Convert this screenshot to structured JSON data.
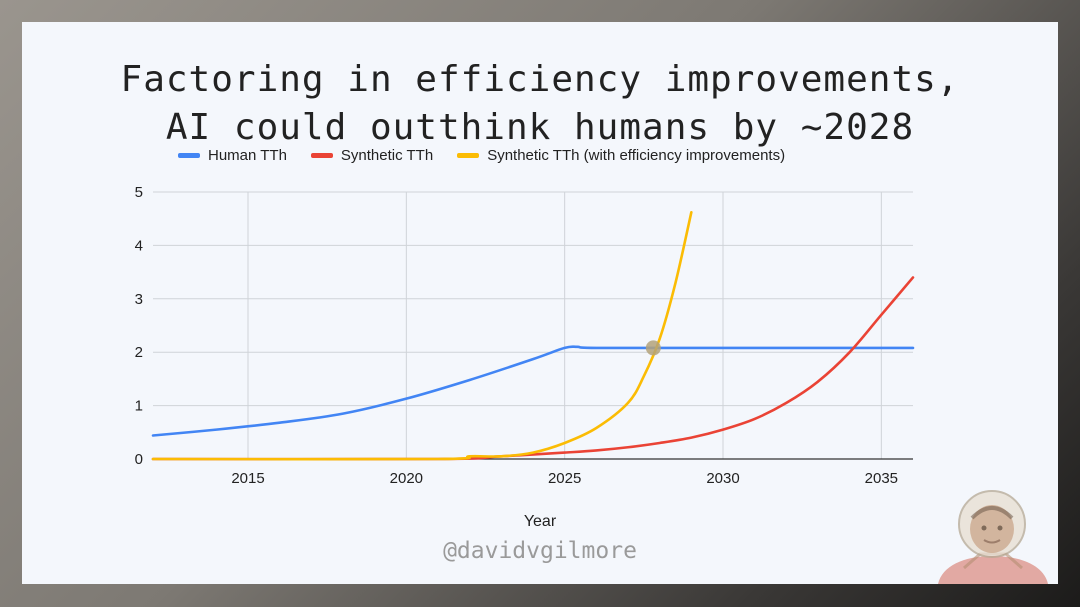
{
  "chart_data": {
    "type": "line",
    "title": "Factoring in efficiency improvements,\nAI could outthink humans by ~2028",
    "xlabel": "Year",
    "ylabel": "",
    "xlim": [
      2012,
      2036
    ],
    "ylim": [
      0,
      5
    ],
    "x_ticks": [
      2015,
      2020,
      2025,
      2030,
      2035
    ],
    "y_ticks": [
      0,
      1,
      2,
      3,
      4,
      5
    ],
    "grid": true,
    "legend_position": "top",
    "series": [
      {
        "name": "Human TTh",
        "color": "#4285f4",
        "points": [
          [
            2012,
            0.44
          ],
          [
            2014,
            0.55
          ],
          [
            2016,
            0.68
          ],
          [
            2018,
            0.85
          ],
          [
            2020,
            1.13
          ],
          [
            2022,
            1.48
          ],
          [
            2024,
            1.87
          ],
          [
            2025,
            2.08
          ],
          [
            2025.4,
            2.1
          ],
          [
            2026,
            2.08
          ],
          [
            2030,
            2.08
          ],
          [
            2036,
            2.08
          ]
        ]
      },
      {
        "name": "Synthetic TTh",
        "color": "#ea4335",
        "points": [
          [
            2012,
            0
          ],
          [
            2021,
            0
          ],
          [
            2023,
            0.05
          ],
          [
            2025,
            0.12
          ],
          [
            2026,
            0.16
          ],
          [
            2027,
            0.22
          ],
          [
            2028,
            0.3
          ],
          [
            2029,
            0.4
          ],
          [
            2030,
            0.55
          ],
          [
            2031,
            0.75
          ],
          [
            2032,
            1.05
          ],
          [
            2033,
            1.45
          ],
          [
            2034,
            2.0
          ],
          [
            2035,
            2.7
          ],
          [
            2036,
            3.4
          ]
        ]
      },
      {
        "name": "Synthetic TTh (with efficiency improvements)",
        "color": "#fbbc04",
        "points": [
          [
            2012,
            0
          ],
          [
            2021,
            0
          ],
          [
            2022,
            0.05
          ],
          [
            2023,
            0.05
          ],
          [
            2024,
            0.12
          ],
          [
            2025,
            0.3
          ],
          [
            2026,
            0.58
          ],
          [
            2027,
            1.05
          ],
          [
            2027.5,
            1.55
          ],
          [
            2028,
            2.25
          ],
          [
            2028.5,
            3.3
          ],
          [
            2029,
            4.62
          ]
        ]
      }
    ],
    "annotations": [
      {
        "type": "intersection-marker",
        "x": 2027.8,
        "y": 2.08,
        "color": "#b3a27a"
      }
    ]
  },
  "watermark": "@davidvgilmore",
  "avatar_icon": "astronaut-portrait"
}
